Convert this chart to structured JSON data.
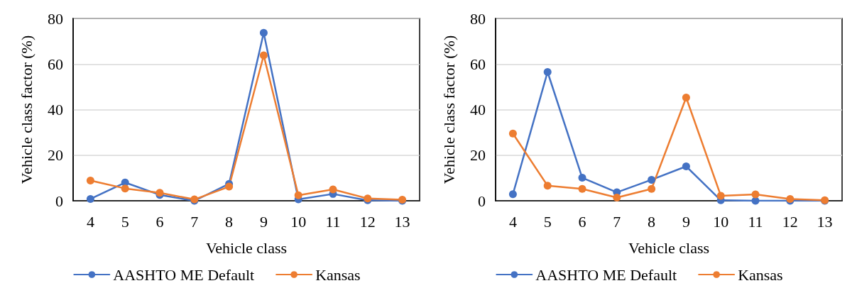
{
  "chart_data": [
    {
      "type": "line",
      "xlabel": "Vehicle class",
      "ylabel": "Vehicle class factor (%)",
      "categories": [
        "4",
        "5",
        "6",
        "7",
        "8",
        "9",
        "10",
        "11",
        "12",
        "13"
      ],
      "ylim": [
        0,
        80
      ],
      "yticks": [
        0,
        20,
        40,
        60,
        80
      ],
      "grid": "y",
      "legend": "bottom",
      "marker": "circle",
      "line_style": "solid",
      "series": [
        {
          "name": "AASHTO ME Default",
          "color": "#4472c4",
          "values": [
            0.8,
            8,
            2.6,
            0,
            7.4,
            73.7,
            0.6,
            3,
            0.2,
            0
          ]
        },
        {
          "name": "Kansas",
          "color": "#ed7d31",
          "values": [
            8.9,
            5.4,
            3.5,
            0.6,
            6.2,
            63.8,
            2.4,
            5,
            1,
            0.5
          ]
        }
      ]
    },
    {
      "type": "line",
      "xlabel": "Vehicle class",
      "ylabel": "Vehicle class factor (%)",
      "categories": [
        "4",
        "5",
        "6",
        "7",
        "8",
        "9",
        "10",
        "11",
        "12",
        "13"
      ],
      "ylim": [
        0,
        80
      ],
      "yticks": [
        0,
        20,
        40,
        60,
        80
      ],
      "grid": "y",
      "legend": "bottom",
      "marker": "circle",
      "line_style": "solid",
      "series": [
        {
          "name": "AASHTO ME Default",
          "color": "#4472c4",
          "values": [
            2.9,
            56.5,
            10.1,
            3.7,
            9.2,
            15.1,
            0.2,
            0,
            0,
            0
          ]
        },
        {
          "name": "Kansas",
          "color": "#ed7d31",
          "values": [
            29.5,
            6.6,
            5.2,
            1.4,
            5.2,
            45.3,
            2.2,
            2.8,
            0.8,
            0.2
          ]
        }
      ]
    }
  ]
}
